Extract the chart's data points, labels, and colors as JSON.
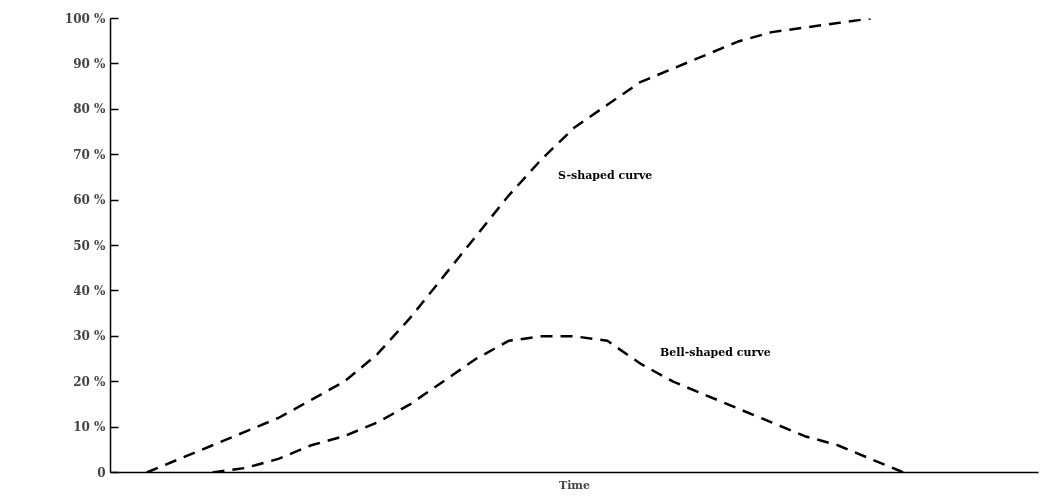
{
  "chart_data": {
    "type": "line",
    "xlabel": "Time",
    "categories": [
      null,
      null,
      null,
      null,
      null,
      null,
      null,
      null,
      null,
      null,
      null,
      null,
      null,
      null,
      null,
      null,
      null,
      null,
      null,
      null,
      null,
      null,
      null,
      null,
      null,
      null,
      null,
      null,
      null
    ],
    "series": [
      {
        "name": "S-shaped curve",
        "color": "#000000",
        "values": [
          null,
          0,
          3,
          6,
          9,
          12,
          16,
          20,
          26,
          34,
          43,
          52,
          61,
          69,
          76,
          81,
          86,
          89,
          92,
          95,
          97,
          98,
          99,
          100,
          null,
          null,
          null,
          null,
          null
        ]
      },
      {
        "name": "Bell-shaped curve",
        "color": "#000000",
        "values": [
          null,
          null,
          null,
          0,
          1,
          3,
          6,
          8,
          11,
          15,
          20,
          25,
          29,
          30,
          30,
          29,
          24,
          20,
          17,
          14,
          11,
          8,
          6,
          3,
          0,
          null,
          null,
          null,
          null
        ]
      }
    ],
    "ylim": [
      0,
      100
    ],
    "yticks": [
      0,
      {
        "value": 10,
        "label": "10 %"
      },
      {
        "value": 20,
        "label": "20 %"
      },
      {
        "value": 30,
        "label": "30 %"
      },
      {
        "value": 40,
        "label": "40 %"
      },
      {
        "value": 50,
        "label": "50 %"
      },
      {
        "value": 60,
        "label": "60 %"
      },
      {
        "value": 70,
        "label": "70 %"
      },
      {
        "value": 80,
        "label": "80 %"
      },
      {
        "value": 90,
        "label": "90 %"
      },
      {
        "value": 100,
        "label": "100 %"
      }
    ],
    "tick_labels": "y",
    "grid": false,
    "legend": false,
    "line_style": "dashed",
    "marker": "none"
  }
}
